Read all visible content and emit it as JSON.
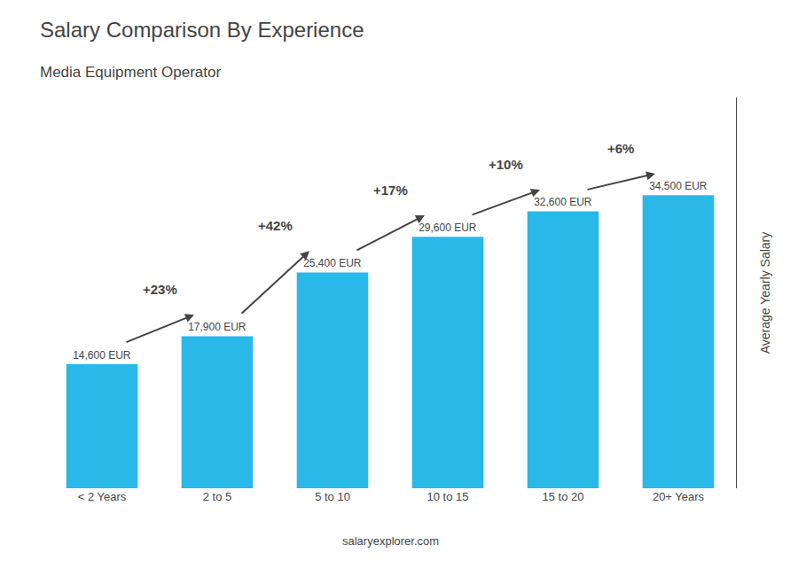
{
  "chart_data": {
    "type": "bar",
    "title": "Salary Comparison By Experience",
    "subtitle": "Media Equipment Operator",
    "ylabel": "Average Yearly Salary",
    "categories": [
      "< 2 Years",
      "2 to 5",
      "5 to 10",
      "10 to 15",
      "15 to 20",
      "20+ Years"
    ],
    "values": [
      14600,
      17900,
      25400,
      29600,
      32600,
      34500
    ],
    "value_labels": [
      "14,600 EUR",
      "17,900 EUR",
      "25,400 EUR",
      "29,600 EUR",
      "32,600 EUR",
      "34,500 EUR"
    ],
    "data_labels": true,
    "color": "#29b8e8",
    "ylim": [
      0,
      46000
    ],
    "tick_labels": "x",
    "grid": false,
    "annotations": [
      {
        "text": "+23%",
        "from": 0,
        "to": 1
      },
      {
        "text": "+42%",
        "from": 1,
        "to": 2
      },
      {
        "text": "+17%",
        "from": 2,
        "to": 3
      },
      {
        "text": "+10%",
        "from": 3,
        "to": 4
      },
      {
        "text": "+6%",
        "from": 4,
        "to": 5
      }
    ],
    "watermark": "salaryexplorer.com"
  }
}
